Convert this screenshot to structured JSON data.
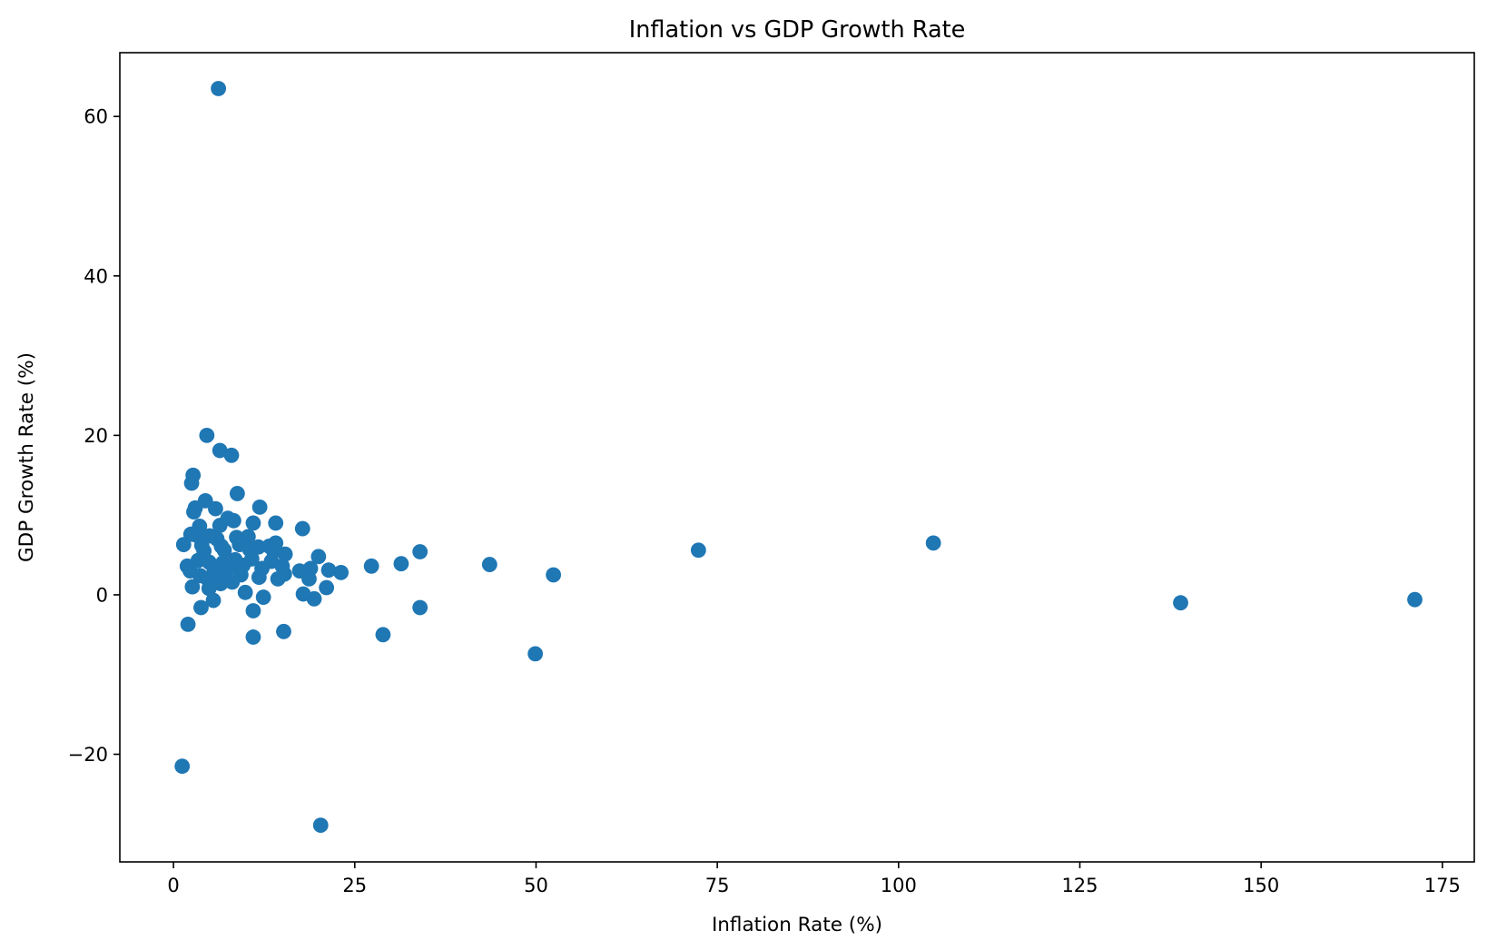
{
  "chart_data": {
    "type": "scatter",
    "title": "Inflation vs GDP Growth Rate",
    "xlabel": "Inflation Rate (%)",
    "ylabel": "GDP Growth Rate (%)",
    "xlim": [
      -7.4,
      179.4
    ],
    "ylim": [
      -33.5,
      68.0
    ],
    "xticks": [
      0,
      25,
      50,
      75,
      100,
      125,
      150,
      175
    ],
    "xtick_labels": [
      "0",
      "25",
      "50",
      "75",
      "100",
      "125",
      "150",
      "175"
    ],
    "yticks": [
      -20,
      0,
      20,
      40,
      60
    ],
    "ytick_labels": [
      "−20",
      "0",
      "20",
      "40",
      "60"
    ],
    "grid": false,
    "legend": "none",
    "marker_color": "#1f77b4",
    "series": [
      {
        "points": [
          [
            6.2,
            63.5
          ],
          [
            4.6,
            20.0
          ],
          [
            6.4,
            18.1
          ],
          [
            8.0,
            17.5
          ],
          [
            2.7,
            15.0
          ],
          [
            2.5,
            14.0
          ],
          [
            8.8,
            12.7
          ],
          [
            4.4,
            11.8
          ],
          [
            5.8,
            10.8
          ],
          [
            3.0,
            10.9
          ],
          [
            2.8,
            10.4
          ],
          [
            11.9,
            11.0
          ],
          [
            7.5,
            9.6
          ],
          [
            8.3,
            9.3
          ],
          [
            11.0,
            9.0
          ],
          [
            14.1,
            9.0
          ],
          [
            3.6,
            8.6
          ],
          [
            6.4,
            8.7
          ],
          [
            17.8,
            8.3
          ],
          [
            3.1,
            7.5
          ],
          [
            5.0,
            7.4
          ],
          [
            2.4,
            7.6
          ],
          [
            6.0,
            7.0
          ],
          [
            8.7,
            7.2
          ],
          [
            10.3,
            7.3
          ],
          [
            1.4,
            6.3
          ],
          [
            3.9,
            6.2
          ],
          [
            6.6,
            6.1
          ],
          [
            9.1,
            6.3
          ],
          [
            11.7,
            6.0
          ],
          [
            13.2,
            6.1
          ],
          [
            14.1,
            6.5
          ],
          [
            4.2,
            5.5
          ],
          [
            7.0,
            5.6
          ],
          [
            10.5,
            5.7
          ],
          [
            13.8,
            5.5
          ],
          [
            15.4,
            5.1
          ],
          [
            20.0,
            4.8
          ],
          [
            34.0,
            5.4
          ],
          [
            72.4,
            5.6
          ],
          [
            104.8,
            6.5
          ],
          [
            1.9,
            3.6
          ],
          [
            2.3,
            3.0
          ],
          [
            3.4,
            4.3
          ],
          [
            4.9,
            4.1
          ],
          [
            5.6,
            3.2
          ],
          [
            6.8,
            4.0
          ],
          [
            7.7,
            3.4
          ],
          [
            8.5,
            4.4
          ],
          [
            9.6,
            3.7
          ],
          [
            10.8,
            4.5
          ],
          [
            12.2,
            3.3
          ],
          [
            13.5,
            4.2
          ],
          [
            15.0,
            3.6
          ],
          [
            17.4,
            3.0
          ],
          [
            18.9,
            3.3
          ],
          [
            21.4,
            3.1
          ],
          [
            23.1,
            2.8
          ],
          [
            27.3,
            3.6
          ],
          [
            31.4,
            3.9
          ],
          [
            43.6,
            3.8
          ],
          [
            52.4,
            2.5
          ],
          [
            3.7,
            2.4
          ],
          [
            4.7,
            2.0
          ],
          [
            5.9,
            2.6
          ],
          [
            7.2,
            2.1
          ],
          [
            8.1,
            1.6
          ],
          [
            9.3,
            2.5
          ],
          [
            11.8,
            2.2
          ],
          [
            14.4,
            2.0
          ],
          [
            15.3,
            2.6
          ],
          [
            18.7,
            2.0
          ],
          [
            2.6,
            1.0
          ],
          [
            4.9,
            0.8
          ],
          [
            6.5,
            1.4
          ],
          [
            9.9,
            0.3
          ],
          [
            17.9,
            0.1
          ],
          [
            21.1,
            0.9
          ],
          [
            12.4,
            -0.3
          ],
          [
            19.4,
            -0.5
          ],
          [
            5.5,
            -0.7
          ],
          [
            3.8,
            -1.6
          ],
          [
            34.0,
            -1.6
          ],
          [
            138.9,
            -1.0
          ],
          [
            171.2,
            -0.6
          ],
          [
            11.0,
            -2.0
          ],
          [
            2.0,
            -3.7
          ],
          [
            15.2,
            -4.6
          ],
          [
            28.9,
            -5.0
          ],
          [
            11.0,
            -5.3
          ],
          [
            49.9,
            -7.4
          ],
          [
            1.2,
            -21.5
          ],
          [
            20.3,
            -28.9
          ]
        ]
      }
    ]
  }
}
